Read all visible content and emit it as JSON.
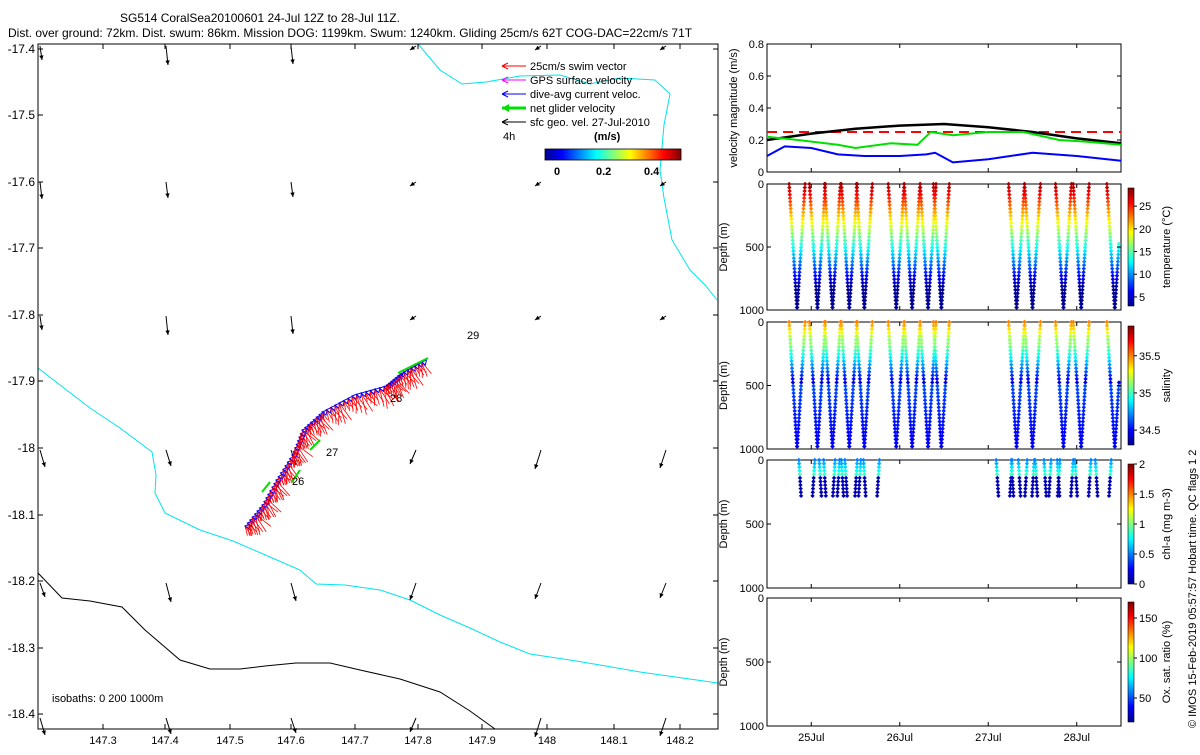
{
  "header": {
    "line1": "SG514 CoralSea20100601 24-Jul 12Z to 28-Jul 11Z.",
    "line2": "Dist. over ground: 72km. Dist. swum: 86km. Mission DOG: 1199km. Swum: 1240km. Gliding 25cm/s 62T COG-DAC=22cm/s 71T"
  },
  "credit": "© IMOS 15-Feb-2019 05:57:57 Hobart time. QC flags 1  2",
  "map": {
    "x_ticks": [
      "147.3",
      "147.4",
      "147.5",
      "147.6",
      "147.7",
      "147.8",
      "147.9",
      "148",
      "148.1",
      "148.2"
    ],
    "y_ticks": [
      "-17.4",
      "-17.5",
      "-17.6",
      "-17.7",
      "-17.8",
      "-17.9",
      "-18",
      "-18.1",
      "-18.2",
      "-18.3",
      "-18.4"
    ],
    "legend": [
      {
        "label": "25cm/s swim vector",
        "color": "#ff0000"
      },
      {
        "label": "GPS surface velocity",
        "color": "#ff00ff"
      },
      {
        "label": "dive-avg current veloc.",
        "color": "#0000ff"
      },
      {
        "label": "net glider velocity",
        "color": "#00e000"
      },
      {
        "label": "sfc geo. vel. 27-Jul-2010",
        "color": "#000000"
      }
    ],
    "time_scale_label": "4h",
    "colorbar": {
      "title": "(m/s)",
      "ticks": [
        "0",
        "0.2",
        "0.4"
      ]
    },
    "day_labels": [
      "26",
      "27",
      "28",
      "29"
    ],
    "isobath_label": "isobaths: 0   200  1000m",
    "colors": {
      "coastline": "#00e5ee",
      "isobath": "#000000"
    }
  },
  "chart_data": [
    {
      "type": "line",
      "title": "",
      "xlabel": "",
      "ylabel": "velocity magnitude (m/s)",
      "ylim": [
        0,
        0.8
      ],
      "y_ticks": [
        "0",
        "0.2",
        "0.4",
        "0.6",
        "0.8"
      ],
      "x_ticks": [
        "25Jul",
        "26Jul",
        "27Jul",
        "28Jul"
      ],
      "series": [
        {
          "name": "25cm/s swim vector",
          "color": "#ff0000",
          "x": [
            24.5,
            25.4,
            25.95,
            27.3,
            28.5
          ],
          "y": [
            0.25,
            0.25,
            0.25,
            0.25,
            0.25
          ]
        },
        {
          "name": "sfc geo. vel. 27-Jul-2010",
          "color": "#000000",
          "x": [
            24.5,
            25.0,
            25.5,
            26.0,
            26.5,
            27.0,
            27.5,
            28.0,
            28.5
          ],
          "y": [
            0.2,
            0.24,
            0.27,
            0.29,
            0.3,
            0.28,
            0.25,
            0.21,
            0.18
          ]
        },
        {
          "name": "net glider velocity",
          "color": "#00e000",
          "x": [
            24.5,
            24.85,
            25.3,
            25.5,
            25.9,
            26.2,
            26.35,
            26.6,
            27.0,
            27.4,
            27.8,
            28.1,
            28.5
          ],
          "y": [
            0.22,
            0.2,
            0.17,
            0.15,
            0.18,
            0.17,
            0.25,
            0.23,
            0.25,
            0.25,
            0.2,
            0.19,
            0.17
          ]
        },
        {
          "name": "dive-avg current veloc.",
          "color": "#0000ff",
          "x": [
            24.5,
            24.7,
            25.0,
            25.3,
            25.6,
            26.0,
            26.3,
            26.4,
            26.6,
            27.0,
            27.5,
            28.0,
            28.5
          ],
          "y": [
            0.1,
            0.16,
            0.15,
            0.11,
            0.1,
            0.1,
            0.11,
            0.12,
            0.06,
            0.08,
            0.12,
            0.1,
            0.07
          ]
        }
      ]
    },
    {
      "type": "scatter",
      "ylabel": "Depth (m)",
      "y_ticks": [
        "0",
        "500",
        "1000"
      ],
      "colorbar_label": "temperature (°C)",
      "colorbar_ticks": [
        "5",
        "10",
        "15",
        "20",
        "25"
      ],
      "value_range": [
        3,
        29
      ],
      "profiles": {
        "max_depth": 1000,
        "valley_x": [
          24.84,
          25.07,
          25.24,
          25.43,
          25.6,
          25.96,
          26.14,
          26.32,
          26.47,
          27.32,
          27.5,
          27.85,
          28.05,
          28.43
        ],
        "peak_x": [
          24.5,
          24.95,
          25.16,
          25.33,
          25.52,
          25.7,
          25.87,
          26.05,
          26.23,
          26.4,
          26.57,
          27.23,
          27.4,
          27.6,
          27.78,
          27.93,
          28.15,
          28.35,
          28.5
        ]
      }
    },
    {
      "type": "scatter",
      "ylabel": "Depth (m)",
      "y_ticks": [
        "0",
        "500",
        "1000"
      ],
      "colorbar_label": "salinity",
      "colorbar_ticks": [
        "34.5",
        "35",
        "35.5"
      ],
      "value_range": [
        34.3,
        35.9
      ]
    },
    {
      "type": "scatter",
      "ylabel": "Depth (m)",
      "y_ticks": [
        "0",
        "500",
        "1000"
      ],
      "colorbar_label": "chl-a (mg m-3)",
      "colorbar_ticks": [
        "0",
        "0.5",
        "1",
        "1.5",
        "2"
      ],
      "value_range": [
        0,
        2
      ],
      "profiles": {
        "max_depth": 280,
        "x": [
          24.95,
          25.18,
          25.23,
          25.43,
          25.47,
          25.68,
          27.18,
          27.35,
          27.43,
          27.62,
          27.72,
          27.87,
          28.07,
          28.3
        ]
      }
    },
    {
      "type": "scatter",
      "ylabel": "Depth (m)",
      "y_ticks": [
        "0",
        "500",
        "1000"
      ],
      "x_ticks": [
        "25Jul",
        "26Jul",
        "27Jul",
        "28Jul"
      ],
      "colorbar_label": "Ox. sat. ratio (%)",
      "colorbar_ticks": [
        "50",
        "100",
        "150"
      ],
      "value_range": [
        20,
        170
      ]
    }
  ]
}
